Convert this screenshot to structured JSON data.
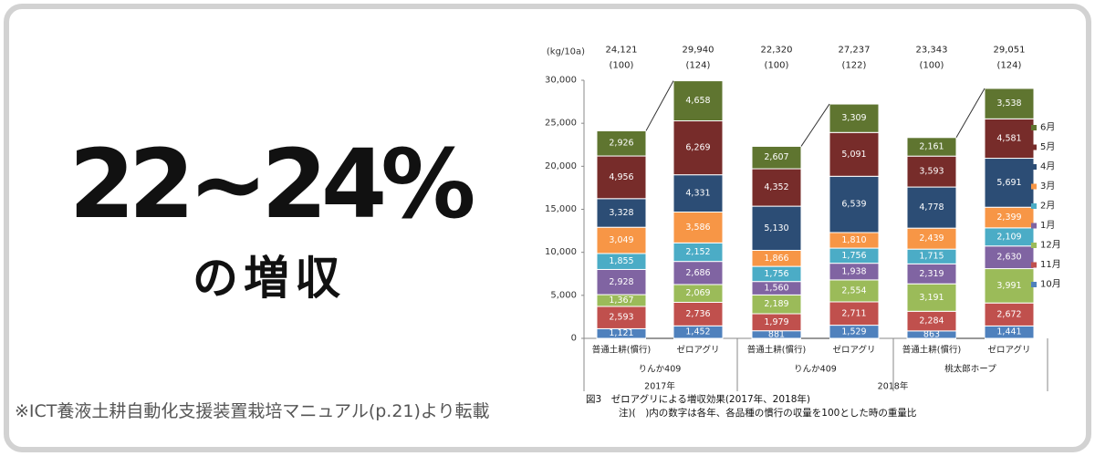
{
  "banner": {
    "headline": "22~24%",
    "subline": "の増収",
    "source": "※ICT養液土耕自動化支援装置栽培マニュアル(p.21)より転載"
  },
  "chart_data": {
    "type": "bar",
    "stacked": true,
    "ylabel": "(kg/10a)",
    "ylim": [
      0,
      30000
    ],
    "yticks": [
      "0",
      "5,000",
      "10,000",
      "15,000",
      "20,000",
      "25,000",
      "30,000"
    ],
    "ytick_values": [
      0,
      5000,
      10000,
      15000,
      20000,
      25000,
      30000
    ],
    "categories": [
      "普通土耕(慣行)",
      "ゼロアグリ",
      "普通土耕(慣行)",
      "ゼロアグリ",
      "普通土耕(慣行)",
      "ゼロアグリ"
    ],
    "groups": [
      {
        "label": "りんか409",
        "bars": [
          0,
          1
        ]
      },
      {
        "label": "りんか409",
        "bars": [
          2,
          3
        ]
      },
      {
        "label": "桃太郎ホープ",
        "bars": [
          4,
          5
        ]
      }
    ],
    "years": [
      {
        "label": "2017年",
        "bars": [
          0,
          1
        ]
      },
      {
        "label": "2018年",
        "bars": [
          2,
          5
        ]
      }
    ],
    "totals": [
      "24,121",
      "29,940",
      "22,320",
      "27,237",
      "23,343",
      "29,051"
    ],
    "index": [
      "(100)",
      "(124)",
      "(100)",
      "(122)",
      "(100)",
      "(124)"
    ],
    "series": [
      {
        "name": "10月",
        "color": "#4f81bd",
        "values": [
          1121,
          1452,
          881,
          1529,
          863,
          1441
        ],
        "labels": [
          "1,121",
          "1,452",
          "881",
          "1,529",
          "863",
          "1,441"
        ]
      },
      {
        "name": "11月",
        "color": "#c0504d",
        "values": [
          2593,
          2736,
          1979,
          2711,
          2284,
          2672
        ],
        "labels": [
          "2,593",
          "2,736",
          "1,979",
          "2,711",
          "2,284",
          "2,672"
        ]
      },
      {
        "name": "12月",
        "color": "#9bbb59",
        "values": [
          1367,
          2069,
          2189,
          2554,
          3191,
          3991
        ],
        "labels": [
          "1,367",
          "2,069",
          "2,189",
          "2,554",
          "3,191",
          "3,991"
        ]
      },
      {
        "name": "1月",
        "color": "#8064a2",
        "values": [
          2928,
          2686,
          1560,
          1938,
          2319,
          2630
        ],
        "labels": [
          "2,928",
          "2,686",
          "1,560",
          "1,938",
          "2,319",
          "2,630"
        ]
      },
      {
        "name": "2月",
        "color": "#4bacc6",
        "values": [
          1855,
          2152,
          1756,
          1756,
          1715,
          2109
        ],
        "labels": [
          "1,855",
          "2,152",
          "1,756",
          "1,756",
          "1,715",
          "2,109"
        ]
      },
      {
        "name": "3月",
        "color": "#f79646",
        "values": [
          3049,
          3586,
          1866,
          1810,
          2439,
          2399
        ],
        "labels": [
          "3,049",
          "3,586",
          "1,866",
          "1,810",
          "2,439",
          "2,399"
        ]
      },
      {
        "name": "4月",
        "color": "#2c4d75",
        "values": [
          3328,
          4331,
          5130,
          6539,
          4778,
          5691
        ],
        "labels": [
          "3,328",
          "4,331",
          "5,130",
          "6,539",
          "4,778",
          "5,691"
        ]
      },
      {
        "name": "5月",
        "color": "#772c2a",
        "values": [
          4956,
          6269,
          4352,
          5091,
          3593,
          4581
        ],
        "labels": [
          "4,956",
          "6,269",
          "4,352",
          "5,091",
          "3,593",
          "4,581"
        ]
      },
      {
        "name": "6月",
        "color": "#5f7530",
        "values": [
          2926,
          4658,
          2607,
          3309,
          2161,
          3538
        ],
        "labels": [
          "2,926",
          "4,658",
          "2,607",
          "3,309",
          "2,161",
          "3,538"
        ]
      }
    ],
    "legend_position": "right",
    "caption": "図3　ゼロアグリによる増収効果(2017年、2018年)",
    "note": "注)(　)内の数字は各年、各品種の慣行の収量を100とした時の重量比"
  }
}
